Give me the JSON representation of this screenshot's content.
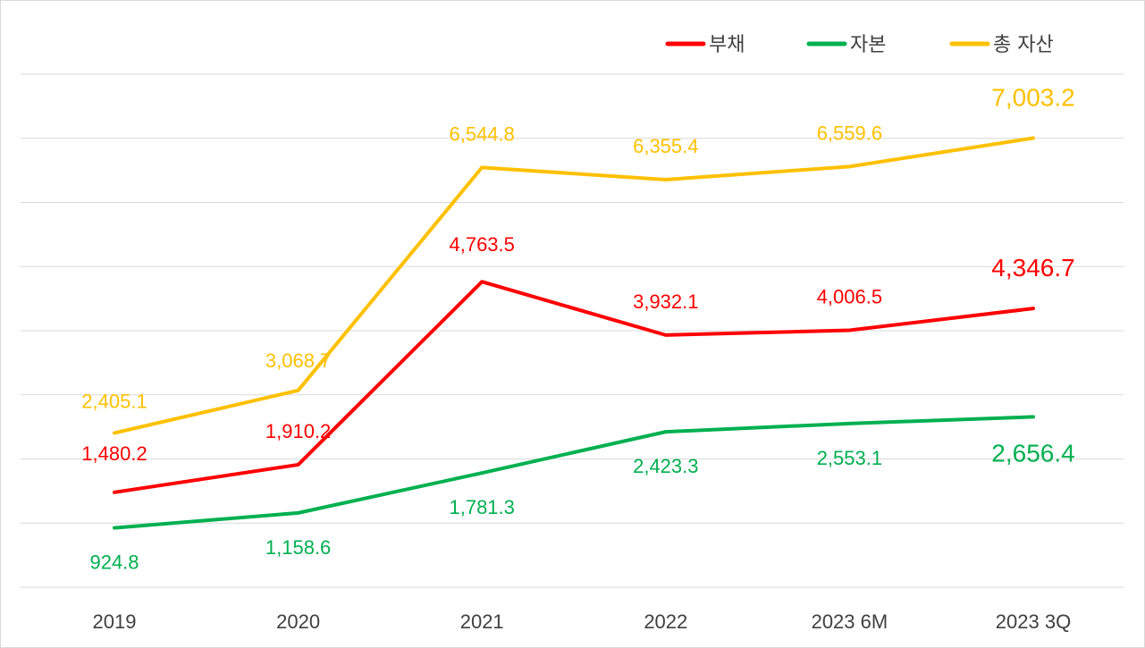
{
  "chart_data": {
    "type": "line",
    "categories": [
      "2019",
      "2020",
      "2021",
      "2022",
      "2023 6M",
      "2023 3Q"
    ],
    "series": [
      {
        "name": "부채",
        "color": "#ff0000",
        "values": [
          1480.2,
          1910.2,
          4763.5,
          3932.1,
          4006.5,
          4346.7
        ],
        "labels": [
          "1,480.2",
          "1,910.2",
          "4,763.5",
          "3,932.1",
          "4,006.5",
          "4,346.7"
        ]
      },
      {
        "name": "자본",
        "color": "#00b050",
        "values": [
          924.8,
          1158.6,
          1781.3,
          2423.3,
          2553.1,
          2656.4
        ],
        "labels": [
          "924.8",
          "1,158.6",
          "1,781.3",
          "2,423.3",
          "2,553.1",
          "2,656.4"
        ]
      },
      {
        "name": "총 자산",
        "color": "#ffc000",
        "values": [
          2405.1,
          3068.7,
          6544.8,
          6355.4,
          6559.6,
          7003.2
        ],
        "labels": [
          "2,405.1",
          "3,068.7",
          "6,544.8",
          "6,355.4",
          "6,559.6",
          "7,003.2"
        ]
      }
    ],
    "ylim": [
      0,
      8000
    ],
    "grid": true,
    "legend_position": "top-right"
  }
}
